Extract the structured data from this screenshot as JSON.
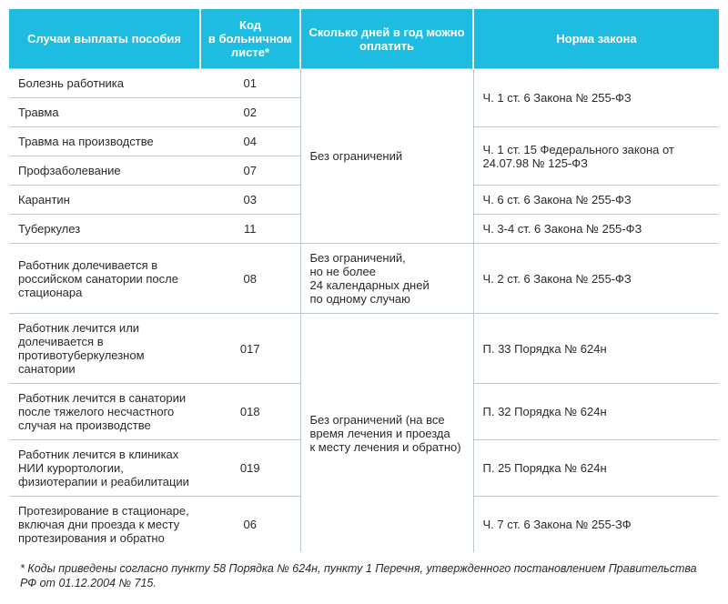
{
  "headers": {
    "case": "Случаи выплаты пособия",
    "code": "Код в больничном листе*",
    "days": "Сколько дней в год можно оплатить",
    "law": "Норма закона"
  },
  "rows": [
    {
      "case": "Болезнь работника",
      "code": "01",
      "law": "Ч. 1 ст. 6 Закона № 255-ФЗ",
      "law_rowspan": 2
    },
    {
      "case": "Травма",
      "code": "02"
    },
    {
      "case": "Травма на производстве",
      "code": "04",
      "law": "Ч. 1 ст. 15 Федерального закона от 24.07.98 № 125-ФЗ",
      "law_rowspan": 2
    },
    {
      "case": "Профзаболевание",
      "code": "07"
    },
    {
      "case": "Карантин",
      "code": "03",
      "law": "Ч. 6 ст. 6 Закона № 255-ФЗ"
    },
    {
      "case": "Туберкулез",
      "code": "11",
      "law": "Ч. 3-4 ст. 6 Закона № 255-ФЗ"
    },
    {
      "case": "Работник долечивается в российском санатории после стационара",
      "code": "08",
      "days": "Без ограничений, но не более 24 календарных дней по одному случаю",
      "law": "Ч. 2 ст. 6 Закона № 255-ФЗ"
    },
    {
      "case": "Работник лечится или долечивается в противотуберкулезном санатории",
      "code": "017",
      "law": "П. 33 Порядка № 624н"
    },
    {
      "case": "Работник лечится в санатории после тяжелого несчастного случая на производстве",
      "code": "018",
      "law": "П. 32 Порядка № 624н"
    },
    {
      "case": "Работник лечится в клиниках НИИ курортологии, физиотерапии и реабилитации",
      "code": "019",
      "law": "П. 25 Порядка № 624н"
    },
    {
      "case": "Протезирование в стационаре, включая дни проезда к месту протезирования и обратно",
      "code": "06",
      "law": "Ч. 7 ст. 6 Закона № 255-ЗФ"
    }
  ],
  "days_block1": "Без ограничений",
  "days_block2": "Без ограничений (на все время лечения и проезда к месту лечения и обратно)",
  "footnote": "* Коды приведены согласно пункту 58 Порядка № 624н, пункту 1 Перечня, утвержденного постановлением Правительства РФ от 01.12.2004 № 715.",
  "colors": {
    "header_bg": "#1fbce1",
    "header_text": "#ffffff",
    "border": "#b8c9d4",
    "text": "#2a2a2a"
  }
}
